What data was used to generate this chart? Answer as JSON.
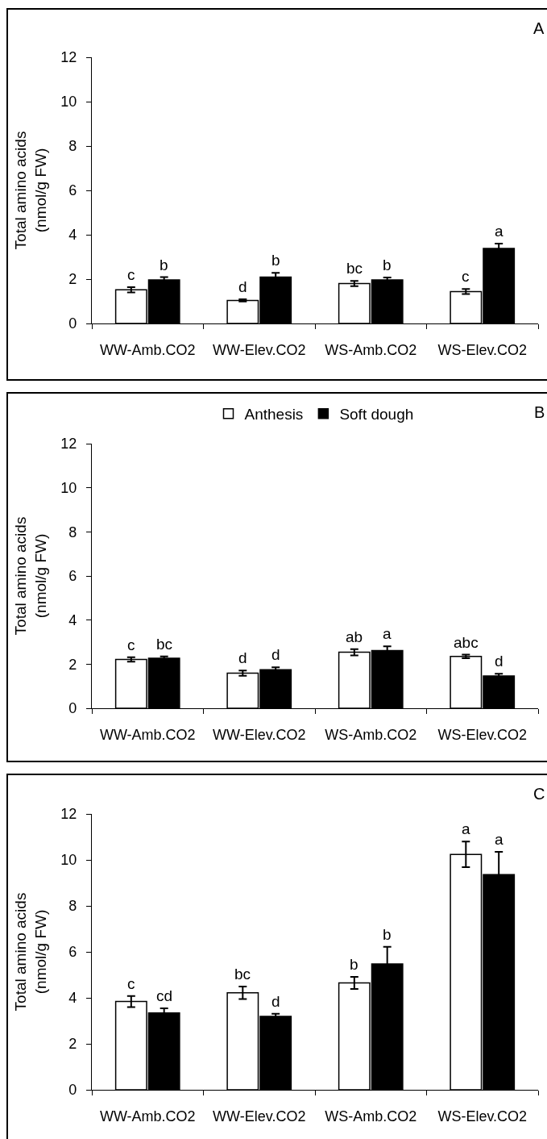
{
  "chart_data": [
    {
      "type": "bar",
      "title": "A",
      "ylabel": "Total amino acids\n(nmol/g FW)",
      "categories": [
        "WW-Amb.CO2",
        "WW-Elev.CO2",
        "WS-Amb.CO2",
        "WS-Elev.CO2"
      ],
      "series": [
        {
          "color": "#ffffff",
          "values": [
            1.52,
            1.04,
            1.8,
            1.44
          ],
          "errors": [
            0.12,
            0.05,
            0.12,
            0.11
          ],
          "value_labels": [
            "c",
            "d",
            "bc",
            "c"
          ]
        },
        {
          "color": "#000000",
          "values": [
            1.96,
            2.09,
            1.96,
            3.38
          ],
          "errors": [
            0.13,
            0.19,
            0.11,
            0.22
          ],
          "value_labels": [
            "b",
            "b",
            "b",
            "a"
          ]
        }
      ],
      "ylim": [
        0,
        12
      ],
      "yticks": [
        0,
        2,
        4,
        6,
        8,
        10,
        12
      ]
    },
    {
      "type": "bar",
      "title": "B",
      "ylabel": "Total amino acids\n(nmol/g FW)",
      "categories": [
        "WW-Amb.CO2",
        "WW-Elev.CO2",
        "WS-Amb.CO2",
        "WS-Elev.CO2"
      ],
      "series": [
        {
          "name": "Anthesis",
          "color": "#ffffff",
          "values": [
            2.21,
            1.59,
            2.54,
            2.35
          ],
          "errors": [
            0.1,
            0.12,
            0.14,
            0.08
          ],
          "value_labels": [
            "c",
            "d",
            "ab",
            "abc"
          ]
        },
        {
          "name": "Soft dough",
          "color": "#000000",
          "values": [
            2.27,
            1.75,
            2.62,
            1.46
          ],
          "errors": [
            0.08,
            0.11,
            0.19,
            0.1
          ],
          "value_labels": [
            "bc",
            "d",
            "a",
            "d"
          ]
        }
      ],
      "ylim": [
        0,
        12
      ],
      "yticks": [
        0,
        2,
        4,
        6,
        8,
        10,
        12
      ],
      "legend": "top"
    },
    {
      "type": "bar",
      "title": "C",
      "ylabel": "Total amino acids\n(nmol/g FW)",
      "categories": [
        "WW-Amb.CO2",
        "WW-Elev.CO2",
        "WS-Amb.CO2",
        "WS-Elev.CO2"
      ],
      "series": [
        {
          "color": "#ffffff",
          "values": [
            3.84,
            4.22,
            4.65,
            10.24
          ],
          "errors": [
            0.24,
            0.27,
            0.26,
            0.56
          ],
          "value_labels": [
            "c",
            "bc",
            "b",
            "a"
          ]
        },
        {
          "color": "#000000",
          "values": [
            3.34,
            3.19,
            5.47,
            9.36
          ],
          "errors": [
            0.2,
            0.12,
            0.75,
            0.99
          ],
          "value_labels": [
            "cd",
            "d",
            "b",
            "a"
          ]
        }
      ],
      "ylim": [
        0,
        12
      ],
      "yticks": [
        0,
        2,
        4,
        6,
        8,
        10,
        12
      ]
    }
  ]
}
